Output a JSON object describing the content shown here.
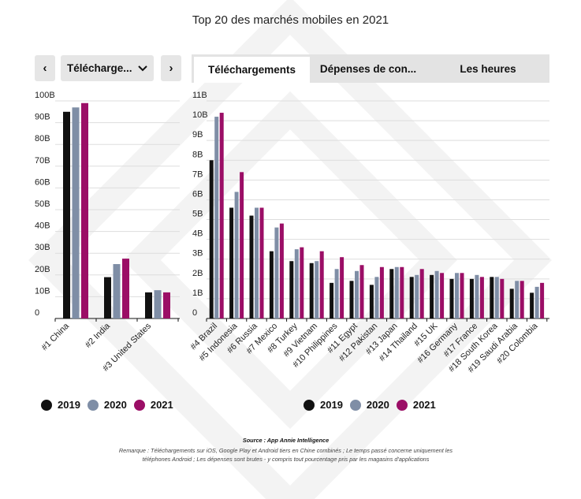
{
  "title": "Top 20 des marchés mobiles en 2021",
  "nav": {
    "prev_label": "‹",
    "next_label": "›",
    "dropdown_value": "Télécharge...",
    "dropdown_icon": "chevron-down-icon"
  },
  "tabs": [
    {
      "label": "Téléchargements",
      "active": true
    },
    {
      "label": "Dépenses de con...",
      "active": false
    },
    {
      "label": "Les heures",
      "active": false
    }
  ],
  "colors": {
    "2019": "#111111",
    "2020": "#7f8ea6",
    "2021": "#9b0e66"
  },
  "legend": [
    "2019",
    "2020",
    "2021"
  ],
  "chart_data": [
    {
      "type": "bar",
      "title": "",
      "xlabel": "",
      "ylabel": "",
      "ylim": [
        0,
        100
      ],
      "yticks": [
        "0",
        "10B",
        "20B",
        "30B",
        "40B",
        "50B",
        "60B",
        "70B",
        "80B",
        "90B",
        "100B"
      ],
      "categories": [
        "#1 China",
        "#2 India",
        "#3 United States"
      ],
      "series": [
        {
          "name": "2019",
          "values": [
            95,
            19,
            12
          ]
        },
        {
          "name": "2020",
          "values": [
            97,
            25,
            13
          ]
        },
        {
          "name": "2021",
          "values": [
            99,
            27.5,
            12
          ]
        }
      ],
      "grid": true
    },
    {
      "type": "bar",
      "title": "",
      "xlabel": "",
      "ylabel": "",
      "ylim": [
        0,
        11
      ],
      "yticks": [
        "0",
        "1B",
        "2B",
        "3B",
        "4B",
        "5B",
        "6B",
        "7B",
        "8B",
        "9B",
        "10B",
        "11B"
      ],
      "categories": [
        "#4 Brazil",
        "#5 Indonesia",
        "#6 Russia",
        "#7 Mexico",
        "#8 Turkey",
        "#9 Vietnam",
        "#10 Philippines",
        "#11 Egypt",
        "#12 Pakistan",
        "#13 Japan",
        "#14 Thailand",
        "#15 UK",
        "#16 Germany",
        "#17 France",
        "#18 South Korea",
        "#19 Saudi Arabia",
        "#20 Colombia"
      ],
      "series": [
        {
          "name": "2019",
          "values": [
            8.0,
            5.6,
            5.2,
            3.4,
            2.9,
            2.8,
            1.8,
            1.9,
            1.7,
            2.5,
            2.1,
            2.2,
            2.0,
            2.0,
            2.1,
            1.5,
            1.3
          ]
        },
        {
          "name": "2020",
          "values": [
            10.2,
            6.4,
            5.6,
            4.6,
            3.5,
            2.9,
            2.5,
            2.4,
            2.1,
            2.6,
            2.2,
            2.4,
            2.3,
            2.2,
            2.1,
            1.9,
            1.6
          ]
        },
        {
          "name": "2021",
          "values": [
            10.4,
            7.4,
            5.6,
            4.8,
            3.6,
            3.4,
            3.1,
            2.7,
            2.6,
            2.6,
            2.5,
            2.3,
            2.3,
            2.1,
            2.0,
            1.9,
            1.8
          ]
        }
      ],
      "grid": true
    }
  ],
  "footer": {
    "source": "Source : App Annie Intelligence",
    "note": "Remarque : Téléchargements sur iOS, Google Play et Android tiers en Chine combinés ; Le temps passé concerne uniquement les téléphones Android ; Les dépenses sont brutes - y compris tout pourcentage pris par les magasins d'applications"
  }
}
